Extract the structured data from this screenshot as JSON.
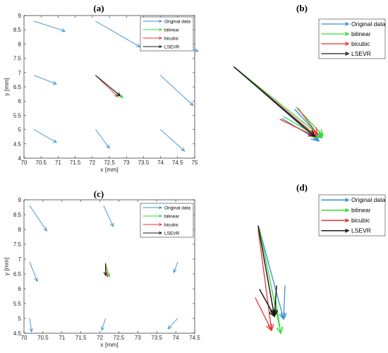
{
  "colors": {
    "Original data": "#3a8fd0",
    "bilinear": "#33dd33",
    "bicubic": "#ee3333",
    "LSEVR": "#1a1a1a"
  },
  "chart_data": [
    {
      "label": "(a)",
      "type": "quiver",
      "xlabel": "x [mm]",
      "ylabel": "y [mm]",
      "xlim": [
        70,
        75
      ],
      "ylim": [
        4,
        9
      ],
      "xticks": [
        "70",
        "70.5",
        "71",
        "71.5",
        "72",
        "72.5",
        "73",
        "73.5",
        "74",
        "74.5",
        "75"
      ],
      "yticks": [
        "4",
        "4.5",
        "5",
        "5.5",
        "6",
        "6.5",
        "7",
        "7.5",
        "8",
        "8.5",
        "9"
      ],
      "legend": [
        "Original data",
        "bilinear",
        "bicubic",
        "LSEVR"
      ],
      "legend_loc": "top-right",
      "series": [
        {
          "name": "Original data",
          "arrows": [
            [
              70.3,
              8.8,
              71.2,
              8.45
            ],
            [
              72.1,
              8.8,
              73.4,
              7.9
            ],
            [
              73.6,
              8.2,
              75.1,
              7.75
            ],
            [
              70.3,
              6.9,
              70.95,
              6.6
            ],
            [
              74.0,
              6.9,
              74.95,
              5.85
            ],
            [
              70.3,
              5.0,
              70.95,
              4.55
            ],
            [
              72.1,
              5.0,
              72.5,
              4.35
            ],
            [
              74.0,
              5.0,
              74.7,
              4.25
            ]
          ]
        },
        {
          "name": "bilinear",
          "arrows": [
            [
              72.1,
              6.9,
              72.9,
              6.12
            ]
          ]
        },
        {
          "name": "bicubic",
          "arrows": [
            [
              72.1,
              6.9,
              72.75,
              6.15
            ]
          ]
        },
        {
          "name": "LSEVR",
          "arrows": [
            [
              72.1,
              6.9,
              72.82,
              6.18
            ]
          ]
        }
      ]
    },
    {
      "label": "(b)",
      "type": "quiver",
      "legend": [
        "Original data",
        "bilinear",
        "bicubic",
        "LSEVR"
      ],
      "legend_loc": "top-right",
      "series": [
        {
          "name": "Original data",
          "arrows": [
            [
              332,
              95,
              452,
              200
            ],
            [
              418,
              155,
              455,
              195
            ],
            [
              400,
              168,
              450,
              198
            ]
          ]
        },
        {
          "name": "bilinear",
          "arrows": [
            [
              332,
              95,
              457,
              195
            ],
            [
              420,
              152,
              458,
              192
            ],
            [
              402,
              165,
              452,
              195
            ]
          ]
        },
        {
          "name": "bicubic",
          "arrows": [
            [
              332,
              95,
              449,
              193
            ],
            [
              423,
              154,
              450,
              190
            ],
            [
              397,
              169,
              446,
              193
            ]
          ]
        },
        {
          "name": "LSEVR",
          "arrows": [
            [
              332,
              95,
              446,
              193
            ]
          ]
        }
      ]
    },
    {
      "label": "(c)",
      "type": "quiver",
      "xlabel": "x [mm]",
      "ylabel": "y [mm]",
      "xlim": [
        70,
        74.5
      ],
      "ylim": [
        4.5,
        9
      ],
      "xticks": [
        "70",
        "70.5",
        "71",
        "71.5",
        "72",
        "72.5",
        "73",
        "73.5",
        "74",
        "74.5"
      ],
      "yticks": [
        "4.5",
        "5",
        "5.5",
        "6",
        "6.5",
        "7",
        "7.5",
        "8",
        "8.5",
        "9"
      ],
      "legend": [
        "Original data",
        "bilinear",
        "bicubic",
        "LSEVR"
      ],
      "legend_loc": "top-right",
      "series": [
        {
          "name": "Original data",
          "arrows": [
            [
              70.15,
              8.8,
              70.6,
              7.95
            ],
            [
              72.1,
              8.8,
              72.35,
              8.1
            ],
            [
              70.15,
              6.9,
              70.35,
              6.25
            ],
            [
              74.05,
              6.9,
              73.95,
              6.55
            ],
            [
              70.15,
              5.0,
              70.2,
              4.55
            ],
            [
              72.15,
              5.0,
              72.05,
              4.6
            ],
            [
              74.05,
              5.0,
              73.8,
              4.65
            ]
          ]
        },
        {
          "name": "bilinear",
          "arrows": [
            [
              72.15,
              6.85,
              72.25,
              6.4
            ]
          ]
        },
        {
          "name": "bicubic",
          "arrows": [
            [
              72.15,
              6.85,
              72.2,
              6.4
            ]
          ]
        },
        {
          "name": "LSEVR",
          "arrows": [
            [
              72.15,
              6.85,
              72.15,
              6.45
            ]
          ]
        }
      ]
    },
    {
      "label": "(d)",
      "type": "quiver",
      "legend": [
        "Original data",
        "bilinear",
        "bicubic",
        "LSEVR"
      ],
      "legend_loc": "top-right",
      "series": [
        {
          "name": "Original data",
          "arrows": [
            [
              367,
              322,
              402,
              452
            ],
            [
              404,
              405,
              402,
              452
            ]
          ]
        },
        {
          "name": "bilinear",
          "arrows": [
            [
              368,
              325,
              398,
              472
            ],
            [
              390,
              420,
              398,
              472
            ]
          ]
        },
        {
          "name": "bicubic",
          "arrows": [
            [
              366,
              325,
              385,
              468
            ],
            [
              362,
              422,
              385,
              468
            ]
          ]
        },
        {
          "name": "LSEVR",
          "arrows": [
            [
              366,
              320,
              389,
              448
            ],
            [
              392,
              405,
              389,
              448
            ],
            [
              368,
              410,
              389,
              448
            ]
          ]
        }
      ]
    }
  ]
}
